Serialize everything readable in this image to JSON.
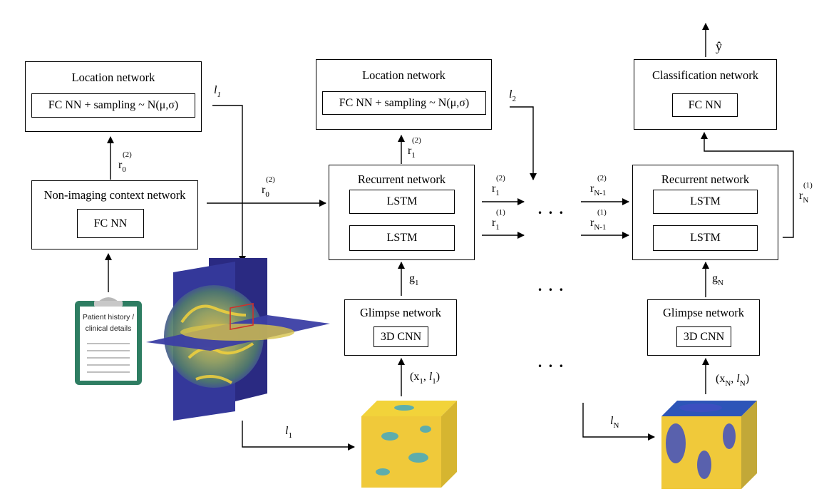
{
  "location_network_1": {
    "title": "Location network",
    "inner": "FC NN + sampling ~ N(μ,σ)"
  },
  "location_network_2": {
    "title": "Location network",
    "inner": "FC NN + sampling ~ N(μ,σ)"
  },
  "classification_network": {
    "title": "Classification network",
    "inner": "FC NN"
  },
  "context_network": {
    "title": "Non-imaging context network",
    "inner": "FC NN"
  },
  "recurrent_network_1": {
    "title": "Recurrent network",
    "lstm_top": "LSTM",
    "lstm_bottom": "LSTM"
  },
  "recurrent_network_n": {
    "title": "Recurrent network",
    "lstm_top": "LSTM",
    "lstm_bottom": "LSTM"
  },
  "glimpse_network_1": {
    "title": "Glimpse network",
    "inner": "3D CNN"
  },
  "glimpse_network_n": {
    "title": "Glimpse network",
    "inner": "3D CNN"
  },
  "clipboard": {
    "text_line1": "Patient history /",
    "text_line2": "clinical details"
  },
  "labels": {
    "l": "l",
    "r": "r",
    "g": "g",
    "x": "x",
    "y_hat": "ŷ",
    "sub_1": "1",
    "sub_2": "2",
    "sub_0": "0",
    "sub_N": "N",
    "sub_N1": "N-1",
    "sup_1": "(1)",
    "sup_2": "(2)",
    "dots": "• • •"
  },
  "colors": {
    "clipboard_green": "#2e7d62",
    "slice_blue": "#3a3fa8",
    "cube_yellow": "#f2d33a",
    "highlight_red": "#d0302a"
  }
}
